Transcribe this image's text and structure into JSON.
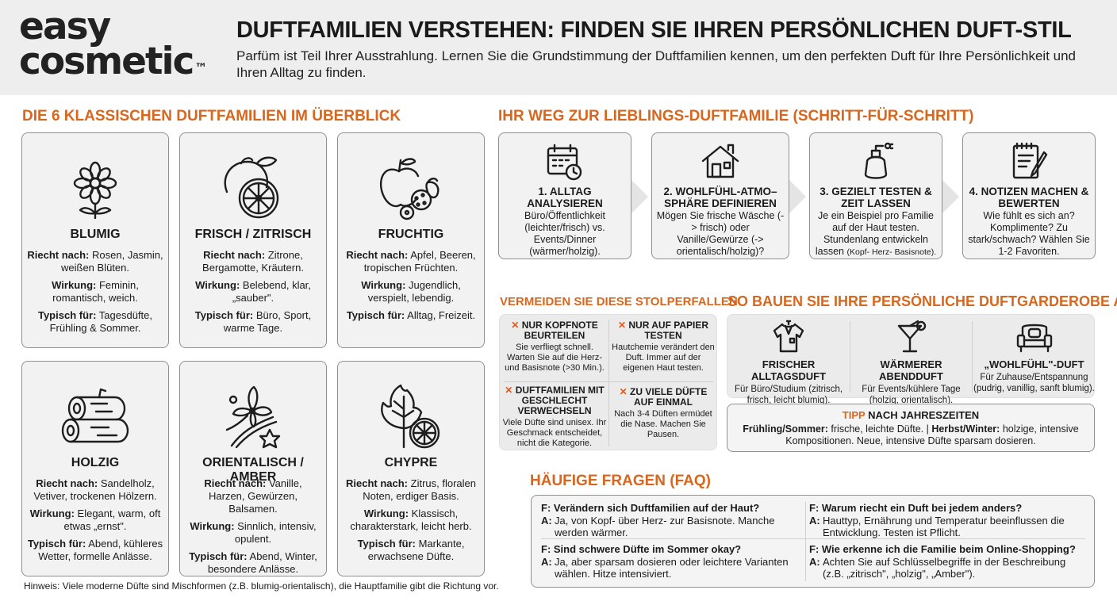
{
  "brand": {
    "logo_line1": "easy",
    "logo_line2": "cosmetic",
    "trademark": "™"
  },
  "header": {
    "title": "DUFTFAMILIEN VERSTEHEN: FINDEN SIE IHREN PERSÖNLICHEN DUFT-STIL",
    "subtitle": "Parfüm ist Teil Ihrer Ausstrahlung. Lernen Sie die Grundstimmung der Duftfamilien kennen, um den perfekten Duft für Ihre Persönlichkeit und Ihren Alltag zu finden."
  },
  "labels": {
    "riecht": "Riecht nach:",
    "wirkung": "Wirkung:",
    "typisch": "Typisch für:"
  },
  "families": {
    "title": "DIE 6 KLASSISCHEN DUFTFAMILIEN IM ÜBERBLICK",
    "items": [
      {
        "icon": "flower-icon",
        "name": "BLUMIG",
        "smell": "Rosen, Jasmin, weißen Blüten.",
        "effect": "Feminin, romantisch, weich.",
        "typical": "Tagesdüfte, Frühling & Sommer."
      },
      {
        "icon": "citrus-icon",
        "name": "FRISCH / ZITRISCH",
        "smell": "Zitrone, Bergamotte, Kräutern.",
        "effect": "Belebend, klar, „sauber\".",
        "typical": "Büro, Sport, warme Tage."
      },
      {
        "icon": "fruit-icon",
        "name": "FRUCHTIG",
        "smell": "Apfel, Beeren, tropischen Früchten.",
        "effect": "Jugendlich, verspielt, lebendig.",
        "typical": "Alltag, Freizeit."
      },
      {
        "icon": "wood-log-icon",
        "name": "HOLZIG",
        "smell": "Sandelholz, Vetiver, trockenen Hölzern.",
        "effect": "Elegant, warm, oft etwas „ernst\".",
        "typical": "Abend, kühleres Wetter, formelle Anlässe."
      },
      {
        "icon": "vanilla-spice-icon",
        "name": "ORIENTALISCH / AMBER",
        "smell": "Vanille, Harzen, Gewürzen, Balsamen.",
        "effect": "Sinnlich, intensiv, opulent.",
        "typical": "Abend, Winter, besondere Anlässe."
      },
      {
        "icon": "leaf-citrus-icon",
        "name": "CHYPRE",
        "smell": "Zitrus, floralen Noten, erdiger Basis.",
        "effect": "Klassisch, charakterstark, leicht herb.",
        "typical": "Markante, erwachsene Düfte."
      }
    ],
    "note": "Hinweis: Viele moderne Düfte sind Mischformen (z.B. blumig-orientalisch), die Hauptfamilie gibt die Richtung vor."
  },
  "steps": {
    "title": "IHR WEG ZUR LIEBLINGS-DUFTFAMILIE (SCHRITT-FÜR-SCHRITT)",
    "items": [
      {
        "icon": "calendar-clock-icon",
        "title": "1. ALLTAG ANALYSIEREN",
        "text": "Büro/Öffentlichkeit (leichter/frisch) vs. Events/Dinner (wärmer/holzig)."
      },
      {
        "icon": "house-icon",
        "title": "2. WOHLFÜHL-ATMO– SPHÄRE DEFINIEREN",
        "text": "Mögen Sie frische Wäsche (-> frisch) oder Vanille/Gewürze (-> orientalisch/holzig)?"
      },
      {
        "icon": "perfume-bottle-icon",
        "title": "3. GEZIELT TESTEN & ZEIT LASSEN",
        "text": "Je ein Beispiel pro Familie auf der Haut testen. Stundenlang entwickeln lassen",
        "text_small": "(Kopf- Herz- Basisnote)."
      },
      {
        "icon": "notepad-pen-icon",
        "title": "4. NOTIZEN MACHEN & BEWERTEN",
        "text": "Wie fühlt es sich an? Komplimente? Zu stark/schwach? Wählen Sie 1-2 Favoriten."
      }
    ]
  },
  "pitfalls": {
    "title": "VERMEIDEN SIE DIESE STOLPERFALLEN",
    "marker": "✕",
    "items": [
      {
        "title": "NUR KOPFNOTE BEURTEILEN",
        "text": "Sie verfliegt schnell. Warten Sie auf die Herz- und Basisnote (>30 Min.)."
      },
      {
        "title": "NUR AUF PAPIER TESTEN",
        "text": "Hautchemie verändert den Duft. Immer auf der eigenen Haut testen."
      },
      {
        "title": "DUFTFAMILIEN MIT GESCHLECHT VERWECHSELN",
        "text": "Viele Düfte sind unisex. Ihr Geschmack entscheidet, nicht die Kategorie."
      },
      {
        "title": "ZU VIELE DÜFTE AUF EINMAL",
        "text": "Nach 3-4 Düften ermüdet die Nase. Machen Sie Pausen."
      }
    ]
  },
  "wardrobe": {
    "title": "SO BAUEN SIE IHRE PERSÖNLICHE DUFTGARDEROBE AUF",
    "items": [
      {
        "icon": "shirt-icon",
        "title": "FRISCHER ALLTAGSDUFT",
        "text": "Für Büro/Studium (zitrisch, frisch, leicht blumig)."
      },
      {
        "icon": "cocktail-icon",
        "title": "WÄRMERER ABENDDUFT",
        "text": "Für Events/kühlere Tage (holzig, orientalisch)."
      },
      {
        "icon": "sofa-icon",
        "title": "„WOHLFÜHL\"-DUFT",
        "text": "Für Zuhause/Entspannung (pudrig, vanillig, sanft blumig)."
      }
    ],
    "tip": {
      "title_accent": "TIPP",
      "title_rest": " NACH JAHRESZEITEN",
      "season1": "Frühling/Sommer:",
      "text1": " frische, leichte Düfte. | ",
      "season2": "Herbst/Winter:",
      "text2": " holzige, intensive Kompositionen. Neue, intensive Düfte sparsam dosieren."
    }
  },
  "faq": {
    "title": "HÄUFIGE FRAGEN (FAQ)",
    "items": [
      {
        "q": "F: Verändern sich Duftfamilien auf der Haut?",
        "a_label": "A:",
        "a": "Ja, von Kopf- über Herz- zur Basisnote. Manche werden wärmer."
      },
      {
        "q": "F: Sind schwere Düfte im Sommer okay?",
        "a_label": "A:",
        "a": "Ja, aber sparsam dosieren oder leichtere Varianten wählen. Hitze intensiviert."
      },
      {
        "q": "F: Warum riecht ein Duft bei jedem anders?",
        "a_label": "A:",
        "a": "Hauttyp, Ernährung und Temperatur beeinflussen die Entwicklung. Testen ist Pflicht."
      },
      {
        "q": "F: Wie erkenne ich die Familie beim Online-Shopping?",
        "a_label": "A:",
        "a": "Achten Sie auf Schlüsselbegriffe in der Beschreibung (z.B. „zitrisch\", „holzig\", „Amber\")."
      }
    ]
  }
}
